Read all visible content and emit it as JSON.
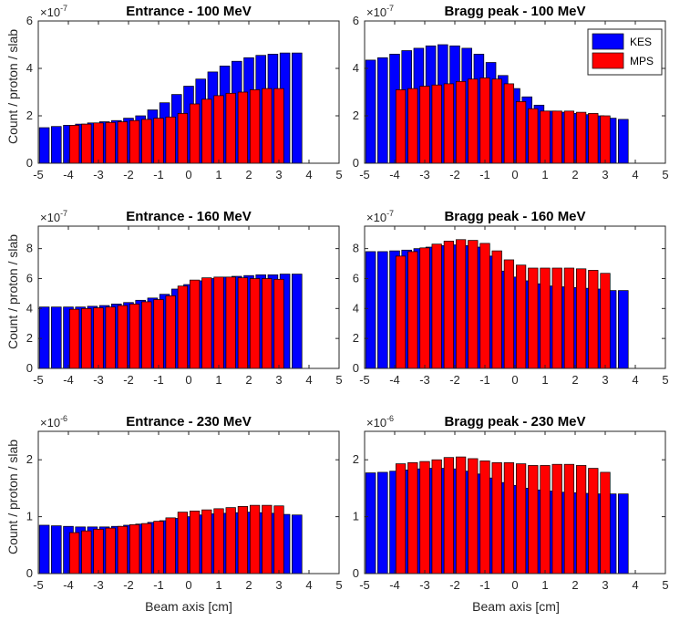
{
  "figure": {
    "xlabel": "Beam axis [cm]",
    "ylabel": "Count / proton / slab",
    "legend": {
      "position": "top-right",
      "entries": [
        {
          "label": "KES",
          "color": "#0000ff"
        },
        {
          "label": "MPS",
          "color": "#ff0000"
        }
      ]
    }
  },
  "chart_data": [
    {
      "type": "bar",
      "title": "Entrance - 100 MeV",
      "exponent_label": "×10",
      "exponent_power": "-7",
      "xlim": [
        -5,
        5
      ],
      "ylim": [
        0,
        6
      ],
      "xticks": [
        "-5",
        "-4",
        "-3",
        "-2",
        "-1",
        "0",
        "1",
        "2",
        "3",
        "4",
        "5"
      ],
      "yticks": [
        "0",
        "2",
        "4",
        "6"
      ],
      "series": [
        {
          "name": "KES",
          "color": "#0000ff",
          "start": -5,
          "step": 0.4,
          "values": [
            1.5,
            1.55,
            1.6,
            1.65,
            1.7,
            1.75,
            1.8,
            1.9,
            2.0,
            2.25,
            2.55,
            2.9,
            3.25,
            3.55,
            3.85,
            4.1,
            4.3,
            4.45,
            4.55,
            4.6,
            4.65,
            4.65
          ]
        },
        {
          "name": "MPS",
          "color": "#ff0000",
          "start": -4,
          "step": 0.4,
          "values": [
            1.6,
            1.65,
            1.7,
            1.72,
            1.75,
            1.8,
            1.85,
            1.9,
            1.95,
            2.1,
            2.5,
            2.7,
            2.85,
            2.95,
            3.0,
            3.1,
            3.15,
            3.15
          ]
        }
      ]
    },
    {
      "type": "bar",
      "title": "Bragg peak - 100 MeV",
      "exponent_label": "×10",
      "exponent_power": "-7",
      "xlim": [
        -5,
        5
      ],
      "ylim": [
        0,
        6
      ],
      "xticks": [
        "-5",
        "-4",
        "-3",
        "-2",
        "-1",
        "0",
        "1",
        "2",
        "3",
        "4",
        "5"
      ],
      "yticks": [
        "0",
        "2",
        "4",
        "6"
      ],
      "show_legend": true,
      "series": [
        {
          "name": "KES",
          "color": "#0000ff",
          "start": -5,
          "step": 0.4,
          "values": [
            4.35,
            4.45,
            4.6,
            4.75,
            4.85,
            4.95,
            5.0,
            4.95,
            4.85,
            4.6,
            4.25,
            3.7,
            3.15,
            2.8,
            2.45,
            2.2,
            2.15,
            2.1,
            2.05,
            2.0,
            1.9,
            1.85
          ]
        },
        {
          "name": "MPS",
          "color": "#ff0000",
          "start": -4,
          "step": 0.4,
          "values": [
            3.1,
            3.15,
            3.25,
            3.3,
            3.35,
            3.45,
            3.55,
            3.6,
            3.55,
            3.35,
            2.6,
            2.3,
            2.2,
            2.2,
            2.2,
            2.15,
            2.1,
            2.0
          ]
        }
      ]
    },
    {
      "type": "bar",
      "title": "Entrance - 160 MeV",
      "exponent_label": "×10",
      "exponent_power": "-7",
      "xlim": [
        -5,
        5
      ],
      "ylim": [
        0,
        9.5
      ],
      "xticks": [
        "-5",
        "-4",
        "-3",
        "-2",
        "-1",
        "0",
        "1",
        "2",
        "3",
        "4",
        "5"
      ],
      "yticks": [
        "0",
        "2",
        "4",
        "6",
        "8"
      ],
      "series": [
        {
          "name": "KES",
          "color": "#0000ff",
          "start": -5,
          "step": 0.4,
          "values": [
            4.1,
            4.1,
            4.1,
            4.1,
            4.15,
            4.2,
            4.3,
            4.4,
            4.55,
            4.7,
            4.95,
            5.3,
            5.6,
            5.85,
            6.0,
            6.1,
            6.15,
            6.2,
            6.25,
            6.25,
            6.3,
            6.3
          ]
        },
        {
          "name": "MPS",
          "color": "#ff0000",
          "start": -4,
          "step": 0.4,
          "values": [
            3.95,
            4.0,
            4.05,
            4.1,
            4.2,
            4.3,
            4.45,
            4.6,
            4.85,
            5.5,
            5.9,
            6.05,
            6.1,
            6.1,
            6.05,
            6.0,
            6.0,
            5.95
          ]
        }
      ]
    },
    {
      "type": "bar",
      "title": "Bragg peak - 160 MeV",
      "exponent_label": "×10",
      "exponent_power": "-7",
      "xlim": [
        -5,
        5
      ],
      "ylim": [
        0,
        9.5
      ],
      "xticks": [
        "-5",
        "-4",
        "-3",
        "-2",
        "-1",
        "0",
        "1",
        "2",
        "3",
        "4",
        "5"
      ],
      "yticks": [
        "0",
        "2",
        "4",
        "6",
        "8"
      ],
      "series": [
        {
          "name": "KES",
          "color": "#0000ff",
          "start": -5,
          "step": 0.4,
          "values": [
            7.8,
            7.8,
            7.85,
            7.9,
            8.0,
            8.1,
            8.2,
            8.25,
            8.2,
            8.1,
            7.5,
            6.5,
            6.1,
            5.85,
            5.65,
            5.5,
            5.45,
            5.4,
            5.35,
            5.3,
            5.2,
            5.2
          ]
        },
        {
          "name": "MPS",
          "color": "#ff0000",
          "start": -4,
          "step": 0.4,
          "values": [
            7.5,
            7.8,
            8.05,
            8.3,
            8.5,
            8.6,
            8.55,
            8.35,
            7.85,
            7.25,
            6.9,
            6.7,
            6.7,
            6.7,
            6.7,
            6.65,
            6.55,
            6.35
          ]
        }
      ]
    },
    {
      "type": "bar",
      "title": "Entrance - 230 MeV",
      "exponent_label": "×10",
      "exponent_power": "-6",
      "xlim": [
        -5,
        5
      ],
      "ylim": [
        0,
        2.5
      ],
      "xticks": [
        "-5",
        "-4",
        "-3",
        "-2",
        "-1",
        "0",
        "1",
        "2",
        "3",
        "4",
        "5"
      ],
      "yticks": [
        "0",
        "1",
        "2"
      ],
      "series": [
        {
          "name": "KES",
          "color": "#0000ff",
          "start": -5,
          "step": 0.4,
          "values": [
            0.85,
            0.84,
            0.83,
            0.82,
            0.82,
            0.82,
            0.83,
            0.85,
            0.87,
            0.9,
            0.93,
            0.97,
            1.0,
            1.03,
            1.05,
            1.06,
            1.07,
            1.08,
            1.07,
            1.06,
            1.04,
            1.03
          ]
        },
        {
          "name": "MPS",
          "color": "#ff0000",
          "start": -4,
          "step": 0.4,
          "values": [
            0.72,
            0.75,
            0.78,
            0.8,
            0.83,
            0.86,
            0.88,
            0.92,
            0.98,
            1.08,
            1.1,
            1.12,
            1.14,
            1.16,
            1.18,
            1.2,
            1.2,
            1.19
          ]
        }
      ]
    },
    {
      "type": "bar",
      "title": "Bragg peak - 230 MeV",
      "exponent_label": "×10",
      "exponent_power": "-6",
      "xlim": [
        -5,
        5
      ],
      "ylim": [
        0,
        2.5
      ],
      "xticks": [
        "-5",
        "-4",
        "-3",
        "-2",
        "-1",
        "0",
        "1",
        "2",
        "3",
        "4",
        "5"
      ],
      "yticks": [
        "0",
        "1",
        "2"
      ],
      "series": [
        {
          "name": "KES",
          "color": "#0000ff",
          "start": -5,
          "step": 0.4,
          "values": [
            1.77,
            1.78,
            1.8,
            1.82,
            1.84,
            1.85,
            1.85,
            1.84,
            1.8,
            1.75,
            1.68,
            1.6,
            1.55,
            1.5,
            1.47,
            1.45,
            1.43,
            1.42,
            1.41,
            1.4,
            1.4,
            1.4
          ]
        },
        {
          "name": "MPS",
          "color": "#ff0000",
          "start": -4,
          "step": 0.4,
          "values": [
            1.93,
            1.95,
            1.97,
            2.0,
            2.04,
            2.05,
            2.02,
            1.98,
            1.95,
            1.95,
            1.93,
            1.9,
            1.9,
            1.92,
            1.92,
            1.9,
            1.85,
            1.78
          ]
        }
      ]
    }
  ]
}
